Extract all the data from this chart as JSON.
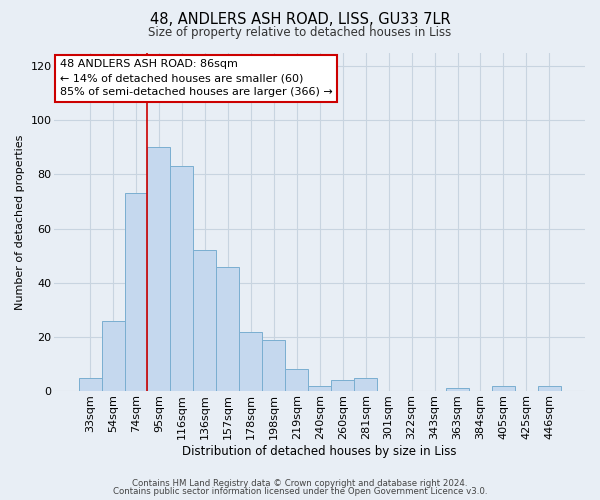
{
  "title": "48, ANDLERS ASH ROAD, LISS, GU33 7LR",
  "subtitle": "Size of property relative to detached houses in Liss",
  "xlabel": "Distribution of detached houses by size in Liss",
  "ylabel": "Number of detached properties",
  "bar_color": "#c5d8ee",
  "bar_edge_color": "#7aaed0",
  "background_color": "#e8eef5",
  "grid_color": "#c8d4e0",
  "categories": [
    "33sqm",
    "54sqm",
    "74sqm",
    "95sqm",
    "116sqm",
    "136sqm",
    "157sqm",
    "178sqm",
    "198sqm",
    "219sqm",
    "240sqm",
    "260sqm",
    "281sqm",
    "301sqm",
    "322sqm",
    "343sqm",
    "363sqm",
    "384sqm",
    "405sqm",
    "425sqm",
    "446sqm"
  ],
  "values": [
    5,
    26,
    73,
    90,
    83,
    52,
    46,
    22,
    19,
    8,
    2,
    4,
    5,
    0,
    0,
    0,
    1,
    0,
    2,
    0,
    2
  ],
  "ylim": [
    0,
    125
  ],
  "yticks": [
    0,
    20,
    40,
    60,
    80,
    100,
    120
  ],
  "vline_x_idx": 3,
  "vline_color": "#cc0000",
  "annotation_title": "48 ANDLERS ASH ROAD: 86sqm",
  "annotation_line1": "← 14% of detached houses are smaller (60)",
  "annotation_line2": "85% of semi-detached houses are larger (366) →",
  "annotation_box_color": "#ffffff",
  "annotation_box_edge_color": "#cc0000",
  "footer1": "Contains HM Land Registry data © Crown copyright and database right 2024.",
  "footer2": "Contains public sector information licensed under the Open Government Licence v3.0."
}
